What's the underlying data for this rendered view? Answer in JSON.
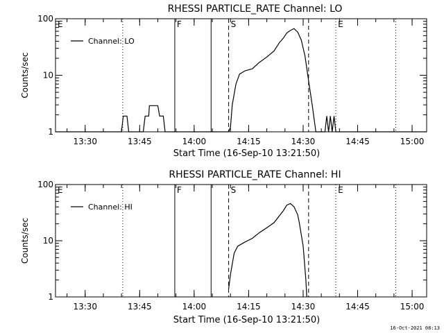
{
  "footer": {
    "timestamp": "16-Oct-2021 08:13"
  },
  "chart_data": [
    {
      "type": "line",
      "title": "RHESSI PARTICLE_RATE Channel: LO",
      "xlabel": "Start Time (16-Sep-10 13:21:50)",
      "ylabel": "Counts/sec",
      "y_scale": "log",
      "ylim": [
        1,
        100
      ],
      "xlim": [
        "13:21:50",
        "15:04:00"
      ],
      "y_tick_labels": [
        "1",
        "10",
        "100"
      ],
      "x_tick_labels": [
        "13:30",
        "13:45",
        "14:00",
        "14:15",
        "14:30",
        "14:45",
        "15:00"
      ],
      "legend": {
        "label": "Channel: LO",
        "placement": "top-left"
      },
      "markers": [
        {
          "label": "E",
          "time": "13:21:50",
          "style": "dotted"
        },
        {
          "label": "",
          "time": "13:40:20",
          "style": "dotted"
        },
        {
          "label": "F",
          "time": "13:54:40",
          "style": "solid"
        },
        {
          "label": "",
          "time": "14:04:40",
          "style": "solid"
        },
        {
          "label": "S",
          "time": "14:09:30",
          "style": "dashed"
        },
        {
          "label": "",
          "time": "14:31:30",
          "style": "dashed"
        },
        {
          "label": "E",
          "time": "14:39:00",
          "style": "dotted"
        },
        {
          "label": "",
          "time": "14:55:30",
          "style": "dotted"
        }
      ],
      "series": [
        {
          "name": "Channel: LO",
          "points": [
            [
              "13:21:50",
              1
            ],
            [
              "13:40:00",
              1
            ],
            [
              "13:40:30",
              1.9
            ],
            [
              "13:41:30",
              1.9
            ],
            [
              "13:42:00",
              1
            ],
            [
              "13:46:00",
              1
            ],
            [
              "13:46:30",
              1.9
            ],
            [
              "13:47:30",
              1.9
            ],
            [
              "13:47:40",
              2.9
            ],
            [
              "13:50:00",
              2.9
            ],
            [
              "13:50:30",
              1.9
            ],
            [
              "13:51:30",
              1.9
            ],
            [
              "13:52:00",
              1
            ],
            [
              "14:09:30",
              1
            ],
            [
              "14:10:00",
              1.2
            ],
            [
              "14:10:30",
              3
            ],
            [
              "14:11:30",
              7
            ],
            [
              "14:12:30",
              10.5
            ],
            [
              "14:14:00",
              12
            ],
            [
              "14:16:00",
              13
            ],
            [
              "14:18:00",
              17
            ],
            [
              "14:20:00",
              21
            ],
            [
              "14:22:00",
              27
            ],
            [
              "14:23:30",
              38
            ],
            [
              "14:24:30",
              45
            ],
            [
              "14:25:30",
              56
            ],
            [
              "14:26:30",
              62
            ],
            [
              "14:27:30",
              67
            ],
            [
              "14:28:30",
              58
            ],
            [
              "14:29:30",
              42
            ],
            [
              "14:30:30",
              22
            ],
            [
              "14:31:30",
              8
            ],
            [
              "14:32:30",
              3
            ],
            [
              "14:33:30",
              1
            ],
            [
              "14:36:00",
              1
            ],
            [
              "14:36:30",
              1.9
            ],
            [
              "14:37:00",
              1
            ],
            [
              "14:37:30",
              1.9
            ],
            [
              "14:38:00",
              1
            ],
            [
              "14:38:30",
              1.9
            ],
            [
              "14:39:00",
              1
            ],
            [
              "15:04:00",
              1
            ]
          ]
        }
      ]
    },
    {
      "type": "line",
      "title": "RHESSI PARTICLE_RATE Channel: HI",
      "xlabel": "Start Time (16-Sep-10 13:21:50)",
      "ylabel": "Counts/sec",
      "y_scale": "log",
      "ylim": [
        1,
        100
      ],
      "xlim": [
        "13:21:50",
        "15:04:00"
      ],
      "y_tick_labels": [
        "1",
        "10",
        "100"
      ],
      "x_tick_labels": [
        "13:30",
        "13:45",
        "14:00",
        "14:15",
        "14:30",
        "14:45",
        "15:00"
      ],
      "legend": {
        "label": "Channel: HI",
        "placement": "top-left"
      },
      "markers": [
        {
          "label": "E",
          "time": "13:21:50",
          "style": "dotted"
        },
        {
          "label": "",
          "time": "13:40:20",
          "style": "dotted"
        },
        {
          "label": "F",
          "time": "13:54:40",
          "style": "solid"
        },
        {
          "label": "",
          "time": "14:04:40",
          "style": "solid"
        },
        {
          "label": "S",
          "time": "14:09:30",
          "style": "dashed"
        },
        {
          "label": "",
          "time": "14:31:30",
          "style": "dashed"
        },
        {
          "label": "E",
          "time": "14:39:00",
          "style": "dotted"
        },
        {
          "label": "",
          "time": "14:55:30",
          "style": "dotted"
        }
      ],
      "series": [
        {
          "name": "Channel: HI",
          "points": [
            [
              "14:09:30",
              1.4
            ],
            [
              "14:10:00",
              2.5
            ],
            [
              "14:11:00",
              6
            ],
            [
              "14:12:00",
              8
            ],
            [
              "14:14:00",
              9.5
            ],
            [
              "14:16:00",
              11
            ],
            [
              "14:18:00",
              14
            ],
            [
              "14:20:00",
              17
            ],
            [
              "14:22:00",
              21
            ],
            [
              "14:23:30",
              28
            ],
            [
              "14:24:30",
              34
            ],
            [
              "14:25:30",
              43
            ],
            [
              "14:26:30",
              46
            ],
            [
              "14:27:30",
              40
            ],
            [
              "14:28:30",
              29
            ],
            [
              "14:29:00",
              20
            ],
            [
              "14:30:00",
              8
            ],
            [
              "14:30:45",
              2
            ],
            [
              "14:31:00",
              1
            ]
          ]
        }
      ]
    }
  ]
}
